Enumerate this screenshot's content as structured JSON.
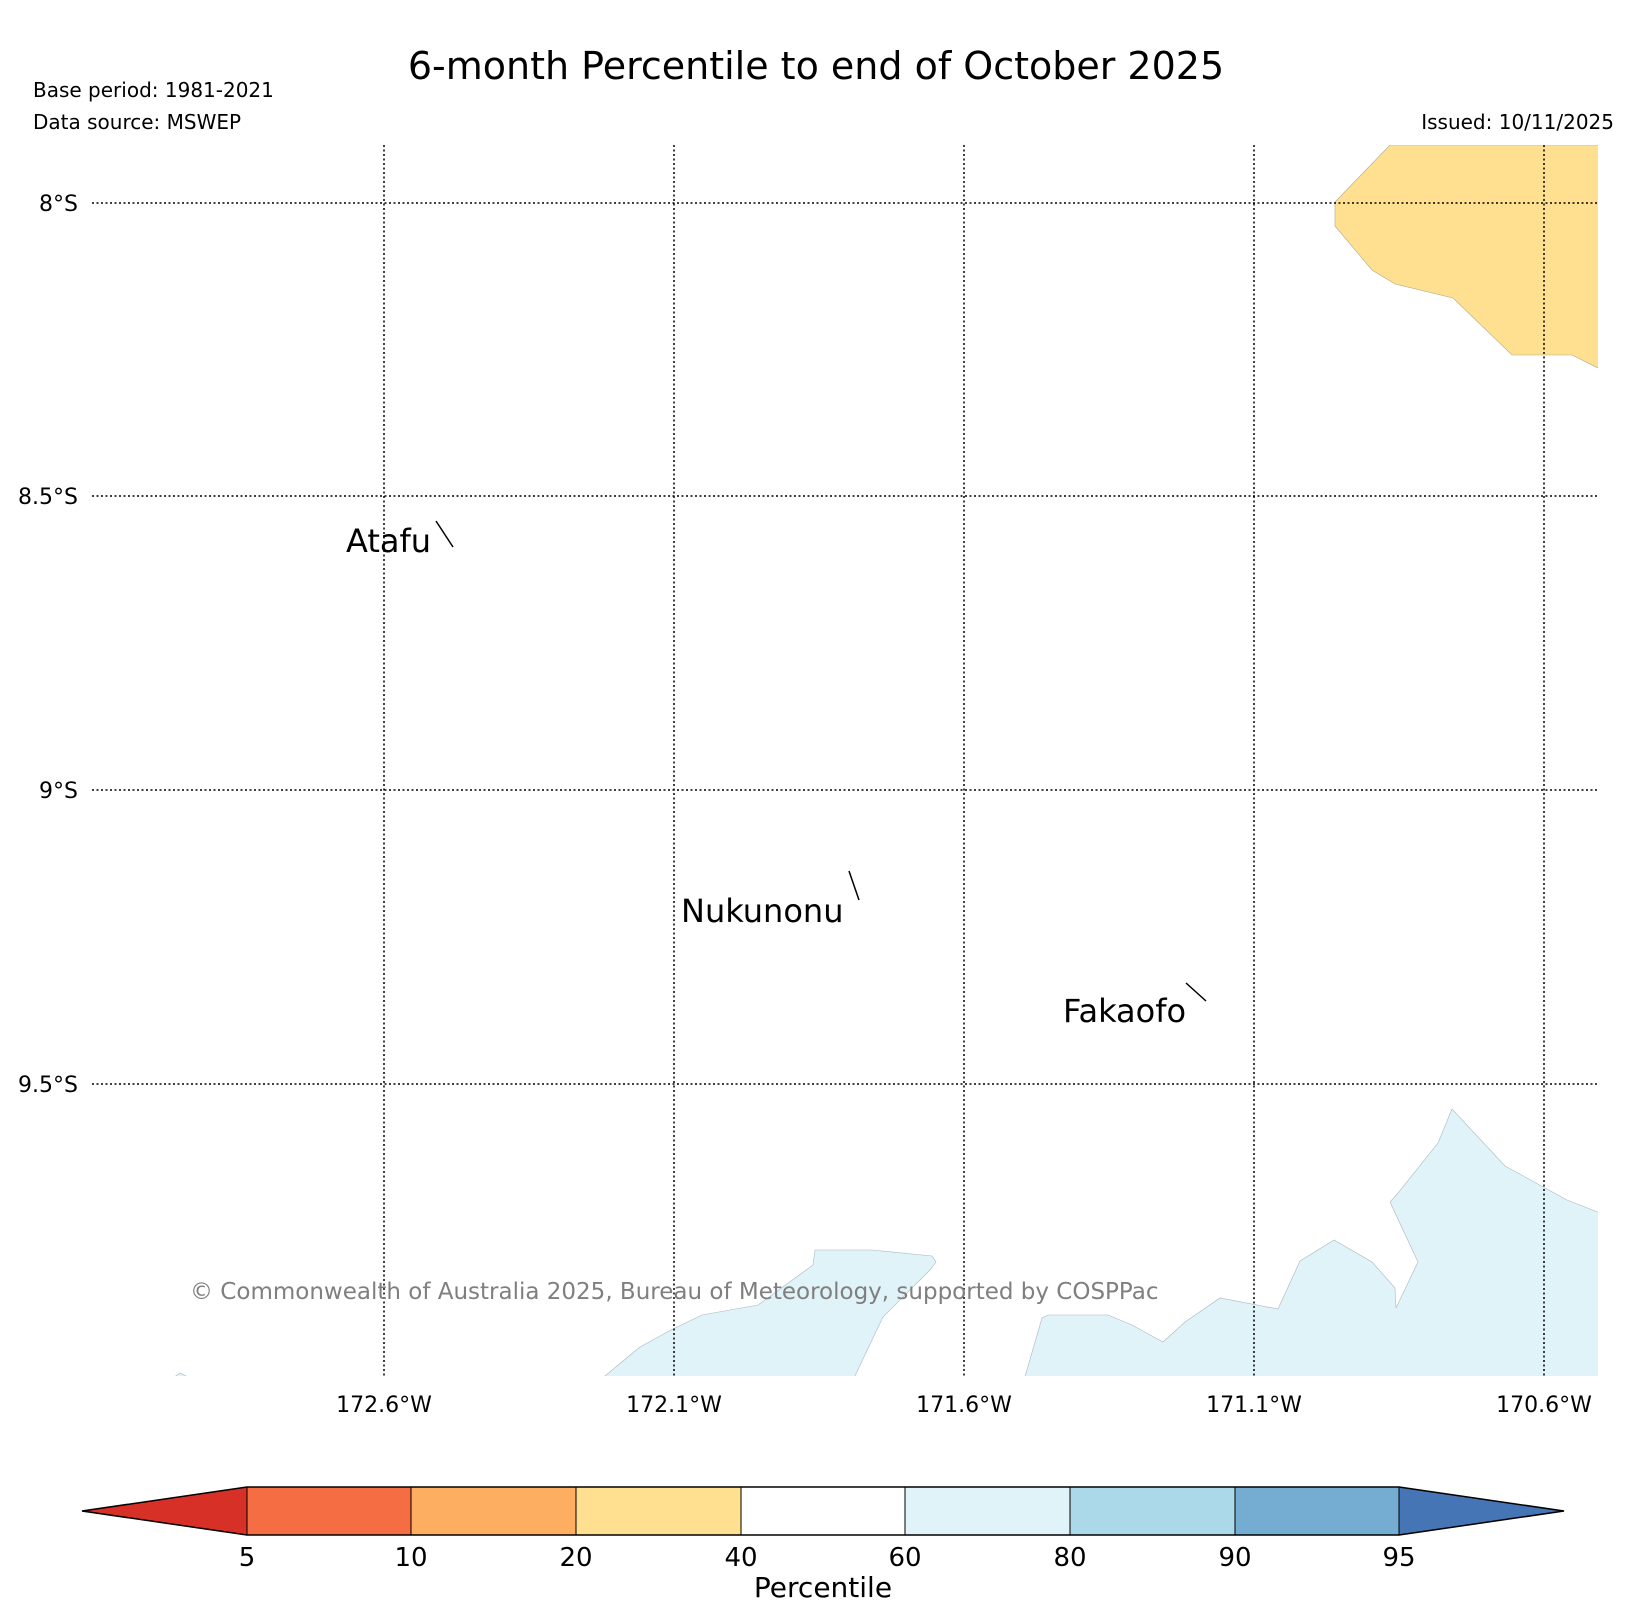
{
  "header": {
    "title": "6-month Percentile to end of October 2025",
    "base_period": "Base period: 1981-2021",
    "data_source": "Data source: MSWEP",
    "issued": "Issued: 10/11/2025"
  },
  "map": {
    "lat_labels": [
      "8°S",
      "8.5°S",
      "9°S",
      "9.5°S"
    ],
    "lon_labels": [
      "172.6°W",
      "172.1°W",
      "171.6°W",
      "171.1°W",
      "170.6°W"
    ],
    "places": [
      {
        "name": "Atafu"
      },
      {
        "name": "Nukunonu"
      },
      {
        "name": "Fakaofo"
      }
    ],
    "copyright": "© Commonwealth of Australia 2025, Bureau of Meteorology, supported by COSPPac"
  },
  "colorbar": {
    "title": "Percentile",
    "ticks": [
      "5",
      "10",
      "20",
      "40",
      "60",
      "80",
      "90",
      "95"
    ],
    "colors": [
      "#d73027",
      "#f46d43",
      "#fdae61",
      "#fee090",
      "#ffffff",
      "#e0f3f8",
      "#abd9e9",
      "#74add1",
      "#4575b4"
    ]
  }
}
